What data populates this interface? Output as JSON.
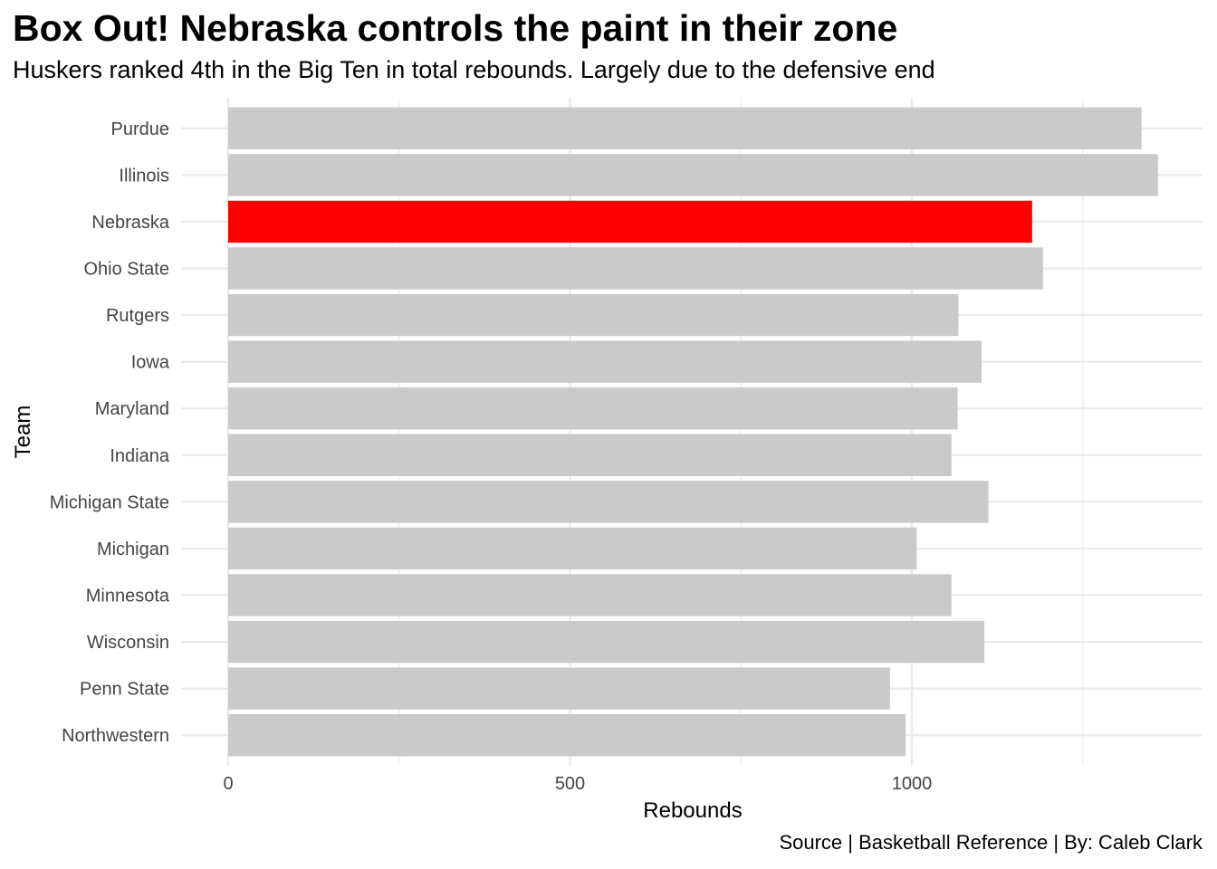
{
  "title": "Box Out! Nebraska controls the paint in their zone",
  "subtitle": "Huskers ranked 4th in the Big Ten in total rebounds. Largely due to the defensive end",
  "caption": "Source | Basketball Reference | By: Caleb Clark",
  "colors": {
    "highlight": "#ff0000",
    "bar": "#cacaca",
    "grid": "#ebebeb"
  },
  "chart_data": {
    "type": "bar",
    "orientation": "horizontal",
    "xlabel": "Rebounds",
    "ylabel": "Team",
    "xlim": [
      0,
      1420
    ],
    "xticks": [
      0,
      500,
      1000
    ],
    "grid": true,
    "highlight": "Nebraska",
    "categories": [
      "Purdue",
      "Illinois",
      "Nebraska",
      "Ohio State",
      "Rutgers",
      "Iowa",
      "Maryland",
      "Indiana",
      "Michigan State",
      "Michigan",
      "Minnesota",
      "Wisconsin",
      "Penn State",
      "Northwestern"
    ],
    "values": [
      1336,
      1360,
      1176,
      1192,
      1068,
      1102,
      1067,
      1058,
      1112,
      1007,
      1058,
      1106,
      968,
      991
    ]
  }
}
